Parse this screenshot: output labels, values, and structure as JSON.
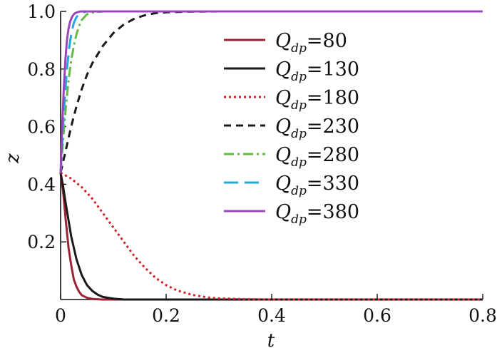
{
  "chart_data": {
    "type": "line",
    "title": "",
    "xlabel": "t",
    "ylabel": "z",
    "xlim": [
      0,
      0.8
    ],
    "ylim": [
      0,
      1.0
    ],
    "x_ticks": [
      0,
      0.2,
      0.4,
      0.6,
      0.8
    ],
    "x_tick_labels": [
      "0",
      "0.2",
      "0.4",
      "0.6",
      "0.8"
    ],
    "y_ticks": [
      0.2,
      0.4,
      0.6,
      0.8,
      1.0
    ],
    "y_tick_labels": [
      "0.2",
      "0.4",
      "0.6",
      "0.8",
      "1.0"
    ],
    "grid": false,
    "legend_position": "top-right",
    "legend_prefix": "Q",
    "legend_subscript": "dp",
    "series": [
      {
        "name": "Q_dp=80",
        "value_label": "80",
        "color": "#9b2335",
        "dash": "solid",
        "x": [
          0,
          0.005,
          0.01,
          0.015,
          0.02,
          0.025,
          0.03,
          0.035,
          0.04,
          0.05,
          0.06,
          0.08,
          0.1,
          0.8
        ],
        "y": [
          0.44,
          0.37,
          0.27,
          0.18,
          0.12,
          0.07,
          0.045,
          0.027,
          0.015,
          0.006,
          0.002,
          0.0,
          0.0,
          0.0
        ]
      },
      {
        "name": "Q_dp=130",
        "value_label": "130",
        "color": "#1a1a1a",
        "dash": "solid",
        "x": [
          0,
          0.005,
          0.01,
          0.02,
          0.03,
          0.04,
          0.05,
          0.06,
          0.07,
          0.08,
          0.1,
          0.12,
          0.8
        ],
        "y": [
          0.44,
          0.39,
          0.33,
          0.22,
          0.14,
          0.085,
          0.05,
          0.03,
          0.017,
          0.009,
          0.003,
          0.0,
          0.0
        ]
      },
      {
        "name": "Q_dp=180",
        "value_label": "180",
        "color": "#d0202a",
        "dash": "dotted",
        "x": [
          0,
          0.02,
          0.04,
          0.06,
          0.08,
          0.1,
          0.12,
          0.14,
          0.16,
          0.18,
          0.2,
          0.22,
          0.25,
          0.28,
          0.3,
          0.35,
          0.4,
          0.8
        ],
        "y": [
          0.44,
          0.42,
          0.39,
          0.35,
          0.3,
          0.25,
          0.2,
          0.15,
          0.11,
          0.075,
          0.05,
          0.032,
          0.016,
          0.007,
          0.004,
          0.001,
          0.0,
          0.0
        ]
      },
      {
        "name": "Q_dp=230",
        "value_label": "230",
        "color": "#1a1a1a",
        "dash": "dashed",
        "x": [
          0,
          0.01,
          0.02,
          0.03,
          0.04,
          0.05,
          0.06,
          0.08,
          0.1,
          0.12,
          0.14,
          0.16,
          0.18,
          0.2,
          0.24,
          0.3,
          0.8
        ],
        "y": [
          0.44,
          0.52,
          0.6,
          0.67,
          0.73,
          0.78,
          0.82,
          0.88,
          0.925,
          0.955,
          0.975,
          0.987,
          0.994,
          0.997,
          0.999,
          1.0,
          1.0
        ]
      },
      {
        "name": "Q_dp=280",
        "value_label": "280",
        "color": "#66bb44",
        "dash": "dashdot",
        "x": [
          0,
          0.005,
          0.01,
          0.015,
          0.02,
          0.025,
          0.03,
          0.035,
          0.04,
          0.05,
          0.06,
          0.08,
          0.1,
          0.8
        ],
        "y": [
          0.44,
          0.56,
          0.67,
          0.76,
          0.83,
          0.88,
          0.92,
          0.95,
          0.97,
          0.99,
          0.996,
          1.0,
          1.0,
          1.0
        ]
      },
      {
        "name": "Q_dp=330",
        "value_label": "330",
        "color": "#22aadd",
        "dash": "longdash",
        "x": [
          0,
          0.004,
          0.008,
          0.012,
          0.016,
          0.02,
          0.025,
          0.03,
          0.035,
          0.04,
          0.05,
          0.06,
          0.8
        ],
        "y": [
          0.44,
          0.58,
          0.7,
          0.8,
          0.87,
          0.92,
          0.96,
          0.98,
          0.99,
          0.996,
          1.0,
          1.0,
          1.0
        ]
      },
      {
        "name": "Q_dp=380",
        "value_label": "380",
        "color": "#9b44bb",
        "dash": "solid",
        "x": [
          0,
          0.003,
          0.006,
          0.009,
          0.012,
          0.015,
          0.018,
          0.022,
          0.026,
          0.03,
          0.035,
          0.04,
          0.05,
          0.8
        ],
        "y": [
          0.44,
          0.6,
          0.73,
          0.83,
          0.9,
          0.94,
          0.965,
          0.982,
          0.992,
          0.996,
          0.999,
          1.0,
          1.0,
          1.0
        ]
      }
    ]
  }
}
